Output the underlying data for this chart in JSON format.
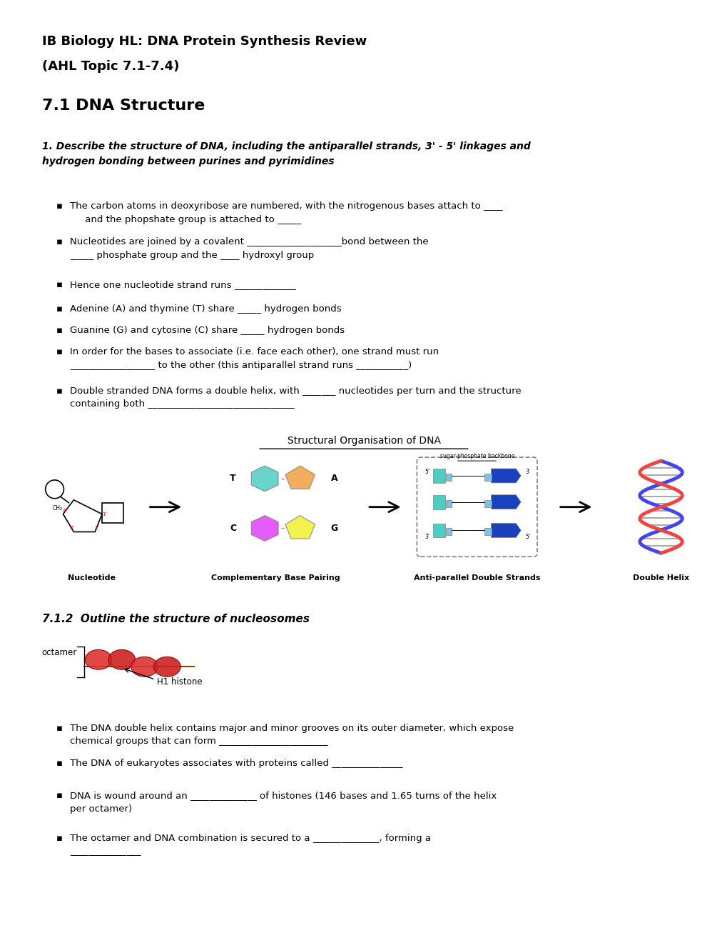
{
  "bg_color": "#ffffff",
  "title_line1": "IB Biology HL: DNA Protein Synthesis Review",
  "title_line2": "(AHL Topic 7.1-7.4)",
  "section1": "7.1 DNA Structure",
  "question1": "1. Describe the structure of DNA, including the antiparallel strands, 3' - 5' linkages and\nhydrogen bonding between purines and pyrimidines",
  "bullets": [
    "The carbon atoms in deoxyribose are numbered, with the nitrogenous bases attach to ____\n     and the phopshate group is attached to _____",
    "Nucleotides are joined by a covalent ____________________bond between the\n_____ phosphate group and the ____ hydroxyl group",
    "Hence one nucleotide strand runs _____________",
    "Adenine (A) and thymine (T) share _____ hydrogen bonds",
    "Guanine (G) and cytosine (C) share _____ hydrogen bonds",
    "In order for the bases to associate (i.e. face each other), one strand must run\n__________________ to the other (this antiparallel strand runs ___________)",
    "Double stranded DNA forms a double helix, with _______ nucleotides per turn and the structure\ncontaining both _______________________________"
  ],
  "diagram_title": "Structural Organisation of DNA",
  "diagram_labels": [
    "Nucleotide",
    "Complementary Base Pairing",
    "Anti-parallel Double Strands",
    "Double Helix"
  ],
  "section2": "7.1.2  Outline the structure of nucleosomes",
  "nucleosome_label": "octamer",
  "h1_label": "H1 histone",
  "bullets2": [
    "The DNA double helix contains major and minor grooves on its outer diameter, which expose\nchemical groups that can form _______________________",
    "The DNA of eukaryotes associates with proteins called _______________",
    "DNA is wound around an ______________ of histones (146 bases and 1.65 turns of the helix\nper octamer)",
    "The octamer and DNA combination is secured to a ______________, forming a\n_______________"
  ]
}
